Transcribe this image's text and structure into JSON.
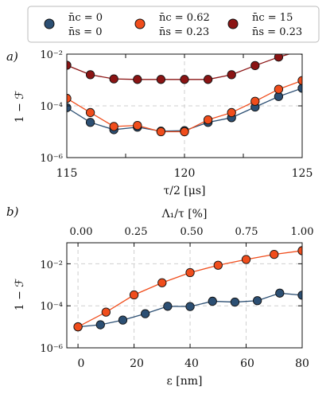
{
  "chart_data": [
    {
      "type": "line",
      "panel_label": "a)",
      "xlabel": "τ/2 [μs]",
      "ylabel": "1 − ℱ",
      "xlim": [
        115,
        125
      ],
      "ylim": [
        1e-06,
        0.01
      ],
      "yscale": "log",
      "xticks": [
        "115",
        "120",
        "125"
      ],
      "yticks": [
        "10⁻⁶",
        "10⁻⁴",
        "10⁻²"
      ],
      "grid": true,
      "x": [
        115,
        116,
        117,
        118,
        119,
        120,
        121,
        122,
        123,
        124,
        125
      ],
      "series": [
        {
          "color": "#2c4f73",
          "values": [
            8.5e-05,
            2.3e-05,
            1.2e-05,
            1.5e-05,
            1.05e-05,
            1.1e-05,
            2.3e-05,
            3.5e-05,
            9e-05,
            0.00023,
            0.00048
          ]
        },
        {
          "color": "#f04d1c",
          "values": [
            0.000195,
            5.5e-05,
            1.6e-05,
            1.75e-05,
            1e-05,
            1e-05,
            2.9e-05,
            5.5e-05,
            0.00015,
            0.00044,
            0.00095
          ]
        },
        {
          "color": "#8b1414",
          "values": [
            0.0037,
            0.0016,
            0.0011,
            0.00105,
            0.00105,
            0.00105,
            0.00105,
            0.0016,
            0.0036,
            0.0077,
            0.014
          ]
        }
      ]
    },
    {
      "type": "line",
      "panel_label": "b)",
      "xlabel": "ε [nm]",
      "ylabel": "1 − ℱ",
      "top_xlabel": "Λ₁/τ [%]",
      "xlim": [
        -4,
        80
      ],
      "ylim": [
        1e-06,
        0.1
      ],
      "yscale": "log",
      "xticks": [
        "0",
        "20",
        "40",
        "60",
        "80"
      ],
      "top_xticks": [
        "0.00",
        "0.25",
        "0.50",
        "0.75",
        "1.00"
      ],
      "yticks": [
        "10⁻⁶",
        "10⁻⁴",
        "10⁻²"
      ],
      "grid": true,
      "series": [
        {
          "color": "#2c4f73",
          "x": [
            0,
            8,
            16,
            24,
            32,
            40,
            48,
            56,
            64,
            72,
            80
          ],
          "values": [
            1e-05,
            1.25e-05,
            2.1e-05,
            4.2e-05,
            9.5e-05,
            9.2e-05,
            0.000165,
            0.00015,
            0.000175,
            0.0004,
            0.00032
          ]
        },
        {
          "color": "#f04d1c",
          "x": [
            0,
            10,
            20,
            30,
            40,
            50,
            60,
            70,
            80
          ],
          "values": [
            1e-05,
            5e-05,
            0.00033,
            0.00125,
            0.0038,
            0.0085,
            0.016,
            0.028,
            0.042
          ]
        }
      ]
    }
  ],
  "legend": {
    "placement": "top",
    "entries": [
      {
        "line1": "n̄c = 0",
        "line2": "n̄s = 0",
        "color": "#2c4f73"
      },
      {
        "line1": "n̄c = 0.62",
        "line2": "n̄s = 0.23",
        "color": "#f04d1c"
      },
      {
        "line1": "n̄c = 15",
        "line2": "n̄s = 0.23",
        "color": "#8b1414"
      }
    ]
  }
}
